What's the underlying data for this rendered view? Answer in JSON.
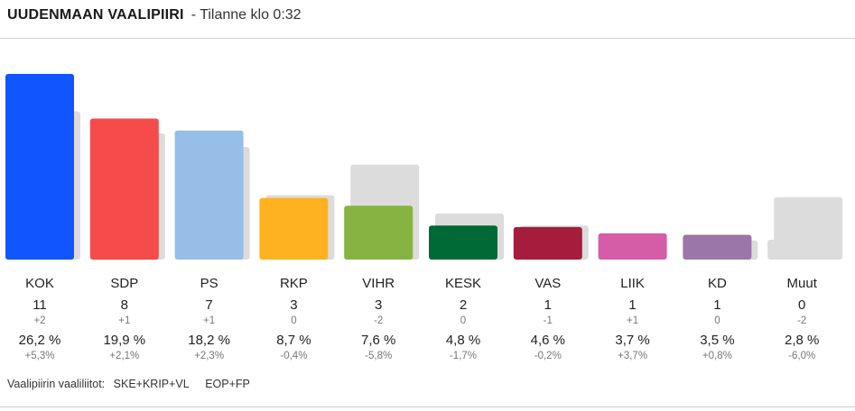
{
  "header": {
    "title": "UUDENMAAN VAALIPIIRI",
    "subtitle": "- Tilanne klo 0:32"
  },
  "alliances": {
    "label": "Vaalipiirin vaaliliitot:",
    "items": [
      "SKE+KRIP+VL",
      "EOP+FP"
    ]
  },
  "chart_data": {
    "type": "bar",
    "title": "UUDENMAAN VAALIPIIRI",
    "categories": [
      "KOK",
      "SDP",
      "PS",
      "RKP",
      "VIHR",
      "KESK",
      "VAS",
      "LIIK",
      "KD",
      "Muut"
    ],
    "series": [
      {
        "values": [
          26.2,
          19.9,
          18.2,
          8.7,
          7.6,
          4.8,
          4.6,
          3.7,
          3.5,
          2.8
        ]
      },
      {
        "values": [
          20.9,
          17.8,
          15.9,
          9.1,
          13.4,
          6.5,
          4.8,
          0.0,
          2.7,
          8.8
        ]
      }
    ],
    "colors": [
      "#1155ff",
      "#f54b4b",
      "#96bee6",
      "#ffb21f",
      "#86b342",
      "#006a37",
      "#a61c3c",
      "#d55ca7",
      "#9b76a8",
      "#dcdcdc"
    ],
    "previous_color": "#dcdcdc",
    "seats": [
      "11",
      "8",
      "7",
      "3",
      "3",
      "2",
      "1",
      "1",
      "1",
      "0"
    ],
    "seat_changes": [
      "+2",
      "+1",
      "+1",
      "0",
      "-2",
      "0",
      "-1",
      "+1",
      "0",
      "-2"
    ],
    "share_labels": [
      "26,2 %",
      "19,9 %",
      "18,2 %",
      "8,7 %",
      "7,6 %",
      "4,8 %",
      "4,6 %",
      "3,7 %",
      "3,5 %",
      "2,8 %"
    ],
    "share_changes": [
      "+5,3%",
      "+2,1%",
      "+2,3%",
      "-0,4%",
      "-5,8%",
      "-1,7%",
      "-0,2%",
      "+3,7%",
      "+0,8%",
      "-6,0%"
    ],
    "ylim": [
      0,
      26.2
    ],
    "grid": false
  }
}
